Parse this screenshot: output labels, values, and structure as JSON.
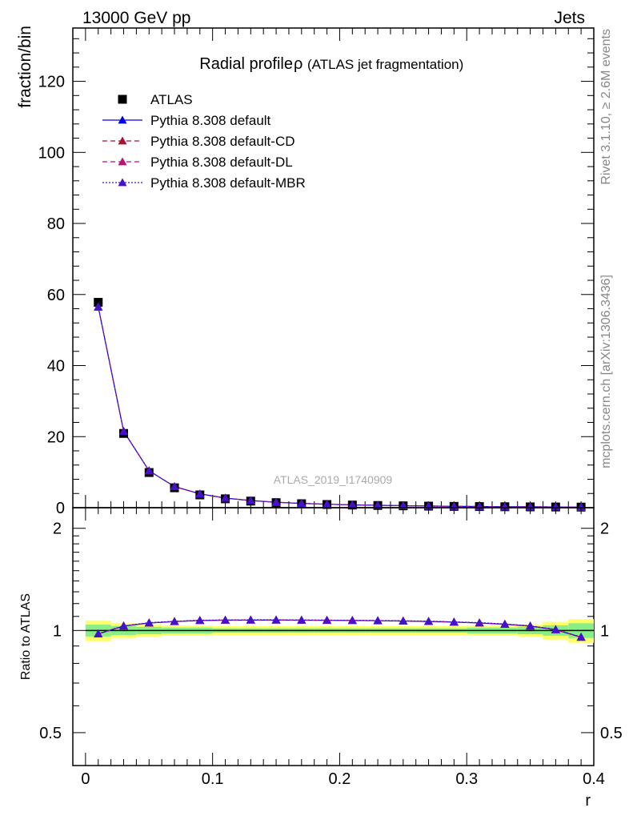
{
  "header": {
    "left": "13000 GeV pp",
    "right": "Jets",
    "title_main": "Radial profile",
    "title_symbol": "ρ",
    "title_sub": "(ATLAS jet fragmentation)"
  },
  "side": {
    "rivet": "Rivet 3.1.10, ≥ 2.6M events",
    "mcplots": "mcplots.cern.ch [arXiv:1306.3436]"
  },
  "watermark": "ATLAS_2019_I1740909",
  "colors": {
    "data": "#000000",
    "default": "#0000ee",
    "cd": "#aa1133",
    "dl": "#bb1177",
    "mbr": "#4411cc",
    "band_inner": "#88ee88",
    "band_outer": "#ffff66"
  },
  "chart_data": [
    {
      "type": "scatter",
      "panel": "main",
      "ylabel": "fraction/bin",
      "xlim": [
        -0.01,
        0.4
      ],
      "ylim": [
        0,
        135
      ],
      "yticks": [
        0,
        20,
        40,
        60,
        80,
        100,
        120
      ],
      "ytick_labels": [
        "0",
        "20",
        "40",
        "60",
        "80",
        "100",
        "120"
      ],
      "x": [
        0.01,
        0.03,
        0.05,
        0.07,
        0.09,
        0.11,
        0.13,
        0.15,
        0.17,
        0.19,
        0.21,
        0.23,
        0.25,
        0.27,
        0.29,
        0.31,
        0.33,
        0.35,
        0.37,
        0.39
      ],
      "legend_position": "top-left",
      "series": [
        {
          "name": "ATLAS",
          "key": "data",
          "marker": "square",
          "line": "none",
          "values": [
            57.8,
            20.9,
            9.9,
            5.6,
            3.6,
            2.5,
            1.85,
            1.42,
            1.12,
            0.9,
            0.74,
            0.62,
            0.52,
            0.44,
            0.37,
            0.32,
            0.27,
            0.23,
            0.2,
            0.17
          ]
        },
        {
          "name": "Pythia 8.308 default",
          "key": "default",
          "marker": "triangle",
          "line": "solid",
          "values": [
            56.5,
            21.5,
            10.4,
            5.95,
            3.9,
            2.7,
            2.0,
            1.54,
            1.21,
            0.97,
            0.8,
            0.67,
            0.56,
            0.47,
            0.39,
            0.34,
            0.28,
            0.24,
            0.2,
            0.16
          ]
        },
        {
          "name": "Pythia 8.308 default-CD",
          "key": "cd",
          "marker": "triangle",
          "line": "dashed",
          "values": [
            56.5,
            21.5,
            10.4,
            5.95,
            3.9,
            2.7,
            2.0,
            1.54,
            1.21,
            0.97,
            0.8,
            0.67,
            0.56,
            0.47,
            0.39,
            0.34,
            0.28,
            0.24,
            0.2,
            0.16
          ]
        },
        {
          "name": "Pythia 8.308 default-DL",
          "key": "dl",
          "marker": "triangle",
          "line": "dashed",
          "values": [
            56.5,
            21.5,
            10.4,
            5.95,
            3.9,
            2.7,
            2.0,
            1.54,
            1.21,
            0.97,
            0.8,
            0.67,
            0.56,
            0.47,
            0.39,
            0.34,
            0.28,
            0.24,
            0.2,
            0.16
          ]
        },
        {
          "name": "Pythia 8.308 default-MBR",
          "key": "mbr",
          "marker": "triangle",
          "line": "dotted",
          "values": [
            56.5,
            21.5,
            10.4,
            5.95,
            3.9,
            2.7,
            2.0,
            1.54,
            1.21,
            0.97,
            0.8,
            0.67,
            0.56,
            0.47,
            0.39,
            0.34,
            0.28,
            0.24,
            0.2,
            0.16
          ]
        }
      ]
    },
    {
      "type": "line",
      "panel": "ratio",
      "ylabel": "Ratio to ATLAS",
      "xlabel": "r",
      "xlim": [
        -0.01,
        0.4
      ],
      "ylim": [
        0.4,
        2.3
      ],
      "yscale": "log",
      "yticks": [
        0.5,
        1,
        2
      ],
      "ytick_labels": [
        "0.5",
        "1",
        "2"
      ],
      "xticks": [
        0,
        0.1,
        0.2,
        0.3,
        0.4
      ],
      "xtick_labels": [
        "0",
        "0.1",
        "0.2",
        "0.3",
        "0.4"
      ],
      "x": [
        0.01,
        0.03,
        0.05,
        0.07,
        0.09,
        0.11,
        0.13,
        0.15,
        0.17,
        0.19,
        0.21,
        0.23,
        0.25,
        0.27,
        0.29,
        0.31,
        0.33,
        0.35,
        0.37,
        0.39
      ],
      "band_outer": [
        0.07,
        0.05,
        0.04,
        0.035,
        0.035,
        0.03,
        0.03,
        0.03,
        0.03,
        0.03,
        0.03,
        0.03,
        0.03,
        0.03,
        0.03,
        0.035,
        0.035,
        0.04,
        0.06,
        0.08
      ],
      "band_inner": [
        0.04,
        0.03,
        0.025,
        0.02,
        0.02,
        0.015,
        0.015,
        0.015,
        0.015,
        0.015,
        0.015,
        0.015,
        0.015,
        0.015,
        0.015,
        0.02,
        0.02,
        0.025,
        0.035,
        0.05
      ],
      "series": [
        {
          "name": "Pythia 8.308 default",
          "key": "default",
          "values": [
            0.977,
            1.03,
            1.052,
            1.062,
            1.07,
            1.072,
            1.073,
            1.073,
            1.072,
            1.071,
            1.07,
            1.068,
            1.066,
            1.063,
            1.058,
            1.052,
            1.043,
            1.03,
            1.005,
            0.955
          ]
        },
        {
          "name": "Pythia 8.308 default-CD",
          "key": "cd",
          "values": [
            0.978,
            1.031,
            1.053,
            1.063,
            1.071,
            1.073,
            1.074,
            1.074,
            1.073,
            1.072,
            1.071,
            1.069,
            1.067,
            1.064,
            1.059,
            1.053,
            1.044,
            1.031,
            1.006,
            0.956
          ]
        },
        {
          "name": "Pythia 8.308 default-DL",
          "key": "dl",
          "values": [
            0.977,
            1.031,
            1.053,
            1.063,
            1.071,
            1.073,
            1.074,
            1.074,
            1.073,
            1.072,
            1.071,
            1.069,
            1.067,
            1.064,
            1.059,
            1.053,
            1.044,
            1.031,
            1.006,
            0.956
          ]
        },
        {
          "name": "Pythia 8.308 default-MBR",
          "key": "mbr",
          "values": [
            0.978,
            1.032,
            1.054,
            1.064,
            1.072,
            1.074,
            1.075,
            1.075,
            1.074,
            1.073,
            1.072,
            1.07,
            1.068,
            1.065,
            1.06,
            1.054,
            1.045,
            1.032,
            1.007,
            0.957
          ]
        }
      ]
    }
  ]
}
